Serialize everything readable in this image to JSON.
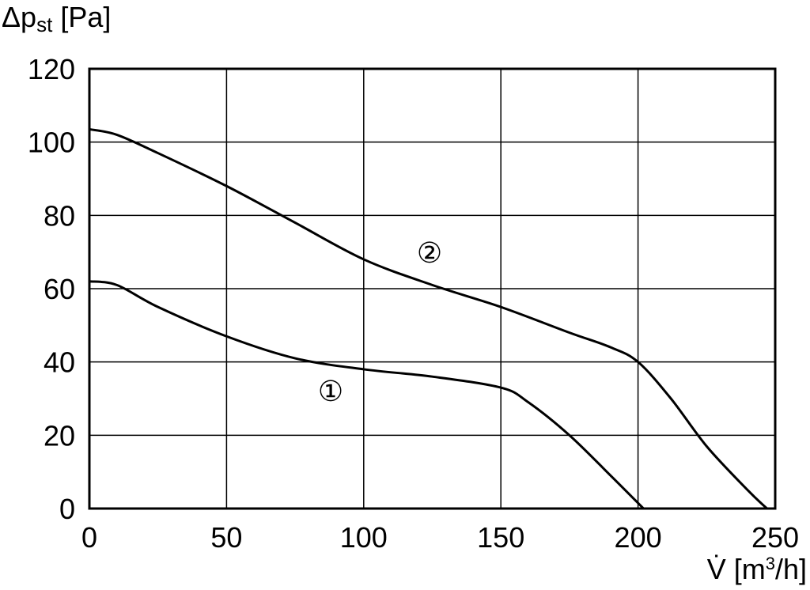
{
  "chart_data": {
    "type": "line",
    "ylabel": {
      "main": "Δp",
      "sub": "st",
      "unit": " [Pa]"
    },
    "xlabel": {
      "main": "V̇ [m",
      "sup": "3",
      "unit": "/h]"
    },
    "xlim": [
      0,
      250
    ],
    "xticks": [
      0,
      50,
      100,
      150,
      200,
      250
    ],
    "ylim": [
      0,
      120
    ],
    "yticks": [
      0,
      20,
      40,
      60,
      80,
      100,
      120
    ],
    "grid": true,
    "series": [
      {
        "name": "①",
        "color": "#000000",
        "x": [
          0,
          10,
          25,
          50,
          75,
          100,
          125,
          150,
          160,
          175,
          190,
          202
        ],
        "values": [
          62,
          61,
          55,
          47,
          41,
          38,
          36,
          33,
          29,
          20,
          9,
          0
        ]
      },
      {
        "name": "②",
        "color": "#000000",
        "x": [
          0,
          10,
          25,
          50,
          75,
          100,
          125,
          150,
          175,
          190,
          200,
          212,
          225,
          240,
          247
        ],
        "values": [
          103.5,
          102,
          97,
          88,
          78,
          68,
          61,
          55,
          48,
          44,
          40,
          30,
          17,
          5,
          0
        ]
      }
    ]
  }
}
